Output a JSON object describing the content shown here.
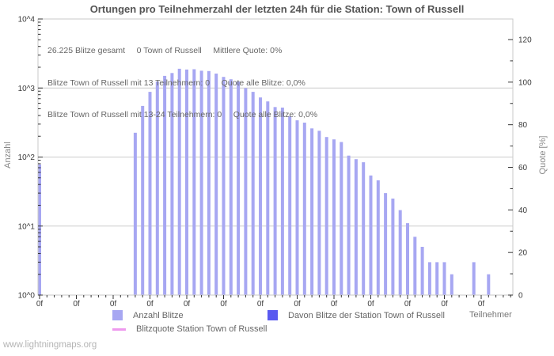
{
  "title": "Ortungen pro Teilnehmerzahl der letzten 24h für die Station: Town of Russell",
  "stats": [
    "26.225 Blitze gesamt     0 Town of Russell     Mittlere Quote: 0%",
    "Blitze Town of Russell mit 13 Teilnehmern: 0     Quote alle Blitze: 0,0%",
    "Blitze Town of Russell mit 13-24 Teilnehmern: 0     Quote alle Blitze: 0,0%"
  ],
  "axes": {
    "left_label": "Anzahl",
    "right_label": "Quote [%]",
    "x_label": "Teilnehmer",
    "left_ticks": [
      "10^4",
      "10^3",
      "10^2",
      "10^1",
      "10^0"
    ],
    "right_ticks": [
      "120",
      "100",
      "80",
      "60",
      "40",
      "20",
      "0"
    ]
  },
  "legend": {
    "items": [
      {
        "label": "Anzahl Blitze",
        "swatch": "square",
        "color": "#a7a7f2"
      },
      {
        "label": "Davon Blitze der Station Town of Russell",
        "swatch": "square",
        "color": "#5a5af0"
      },
      {
        "label": "Blitzquote Station Town of Russell",
        "swatch": "line",
        "color": "#ee99ee"
      }
    ]
  },
  "footer": "www.lightningmaps.org",
  "colors": {
    "bar": "#a7a7f2",
    "station_bar": "#5a5af0",
    "quote_line": "#ee99ee",
    "grid": "#cccccc",
    "border": "#c8c8c8",
    "tick": "#333333"
  },
  "chart_data": {
    "type": "bar",
    "title": "Ortungen pro Teilnehmerzahl der letzten 24h für die Station: Town of Russell",
    "xlabel": "Teilnehmer",
    "ylabel_left": "Anzahl",
    "ylabel_right": "Quote [%]",
    "y_scale": "log10",
    "ylim_left": [
      1,
      10000
    ],
    "ylim_right": [
      0,
      120
    ],
    "grid": "horizontal-decades",
    "legend_position": "bottom",
    "x_tick_labels": [
      "0f",
      "0f",
      "0f",
      "0f",
      "0f",
      "0f",
      "0f",
      "0f",
      "0f",
      "0f",
      "0f",
      "0f",
      "0f"
    ],
    "x_minor_ticks_per_label": 5,
    "series": [
      {
        "name": "Anzahl Blitze",
        "color": "#a7a7f2",
        "points": [
          {
            "t": 0,
            "v": 78
          },
          {
            "t": 13,
            "v": 225
          },
          {
            "t": 14,
            "v": 550
          },
          {
            "t": 15,
            "v": 880
          },
          {
            "t": 16,
            "v": 1240
          },
          {
            "t": 17,
            "v": 1500
          },
          {
            "t": 18,
            "v": 1650
          },
          {
            "t": 19,
            "v": 1900
          },
          {
            "t": 20,
            "v": 1850
          },
          {
            "t": 21,
            "v": 1870
          },
          {
            "t": 22,
            "v": 1780
          },
          {
            "t": 23,
            "v": 1760
          },
          {
            "t": 24,
            "v": 1620
          },
          {
            "t": 25,
            "v": 1450
          },
          {
            "t": 26,
            "v": 1340
          },
          {
            "t": 27,
            "v": 1240
          },
          {
            "t": 28,
            "v": 1000
          },
          {
            "t": 29,
            "v": 880
          },
          {
            "t": 30,
            "v": 730
          },
          {
            "t": 31,
            "v": 640
          },
          {
            "t": 32,
            "v": 530
          },
          {
            "t": 33,
            "v": 520
          },
          {
            "t": 34,
            "v": 390
          },
          {
            "t": 35,
            "v": 340
          },
          {
            "t": 36,
            "v": 315
          },
          {
            "t": 37,
            "v": 260
          },
          {
            "t": 38,
            "v": 240
          },
          {
            "t": 39,
            "v": 195
          },
          {
            "t": 40,
            "v": 180
          },
          {
            "t": 41,
            "v": 165
          },
          {
            "t": 42,
            "v": 105
          },
          {
            "t": 43,
            "v": 93
          },
          {
            "t": 44,
            "v": 84
          },
          {
            "t": 45,
            "v": 54
          },
          {
            "t": 46,
            "v": 46
          },
          {
            "t": 47,
            "v": 30
          },
          {
            "t": 48,
            "v": 25
          },
          {
            "t": 49,
            "v": 17
          },
          {
            "t": 50,
            "v": 11
          },
          {
            "t": 51,
            "v": 7
          },
          {
            "t": 52,
            "v": 5
          },
          {
            "t": 53,
            "v": 3
          },
          {
            "t": 54,
            "v": 3
          },
          {
            "t": 55,
            "v": 3
          },
          {
            "t": 56,
            "v": 2
          },
          {
            "t": 59,
            "v": 3
          },
          {
            "t": 61,
            "v": 2
          }
        ]
      },
      {
        "name": "Davon Blitze der Station Town of Russell",
        "color": "#5a5af0",
        "points": []
      },
      {
        "name": "Blitzquote Station Town of Russell",
        "color": "#ee99ee",
        "type": "line",
        "points": []
      }
    ]
  }
}
